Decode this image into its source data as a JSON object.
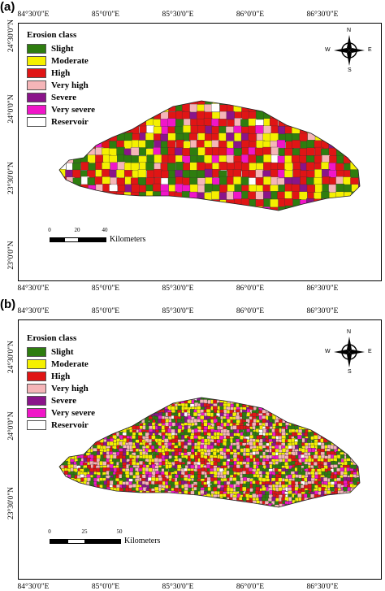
{
  "panels": [
    {
      "label": "(a)",
      "lon_labels": [
        "84°30'0\"E",
        "85°0'0\"E",
        "85°30'0\"E",
        "86°0'0\"E",
        "86°30'0\"E"
      ],
      "lat_labels": [
        "24°30'0\"N",
        "24°0'0\"N",
        "23°30'0\"N",
        "23°0'0\"N"
      ],
      "scale_ticks": [
        "0",
        "20",
        "40"
      ],
      "scale_unit": "Kilometers"
    },
    {
      "label": "(b)",
      "lon_labels": [
        "84°30'0\"E",
        "85°0'0\"E",
        "85°30'0\"E",
        "86°0'0\"E",
        "86°30'0\"E"
      ],
      "lat_labels": [
        "24°30'0\"N",
        "24°0'0\"N",
        "23°30'0\"N"
      ],
      "scale_ticks": [
        "0",
        "25",
        "50"
      ],
      "scale_unit": "Kilometers"
    }
  ],
  "legend": {
    "title": "Erosion class",
    "classes": [
      {
        "label": "Slight",
        "color": "#2e7d0f"
      },
      {
        "label": "Moderate",
        "color": "#f5f000"
      },
      {
        "label": "High",
        "color": "#e01515"
      },
      {
        "label": "Very high",
        "color": "#f5b5b8"
      },
      {
        "label": "Severe",
        "color": "#8a148a"
      },
      {
        "label": "Very severe",
        "color": "#f016c8"
      },
      {
        "label": "Reservoir",
        "color": "#ffffff"
      }
    ]
  },
  "north_arrow": {
    "n": "N",
    "s": "S",
    "e": "E",
    "w": "W"
  }
}
